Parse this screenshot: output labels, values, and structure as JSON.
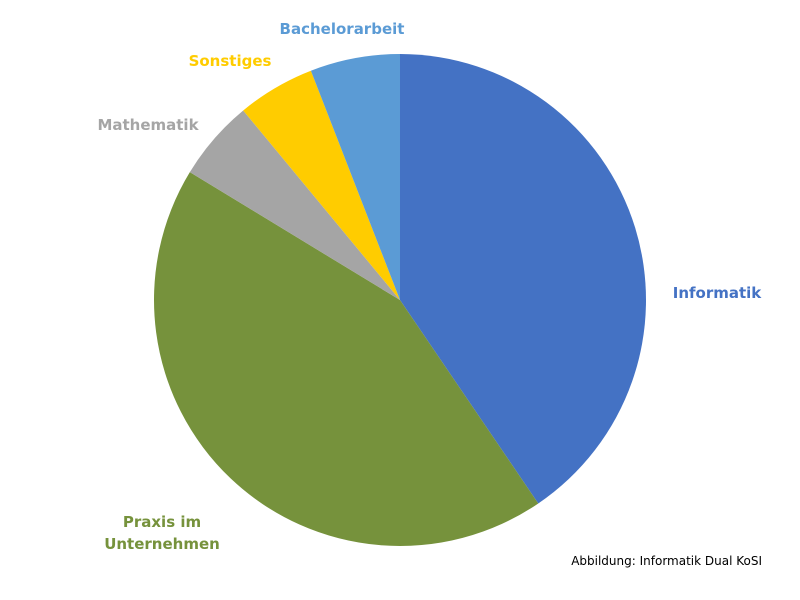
{
  "chart_data": {
    "type": "pie",
    "categories": [
      "Informatik",
      "Praxis im Unternehmen",
      "Mathematik",
      "Sonstiges",
      "Bachelorarbeit"
    ],
    "values": [
      40.5,
      43.2,
      5.3,
      5.1,
      5.9
    ],
    "colors": [
      "#4472c4",
      "#76923c",
      "#a5a5a5",
      "#ffcc00",
      "#5b9bd5"
    ],
    "caption": "Abbildung: Informatik Dual KoSI"
  }
}
